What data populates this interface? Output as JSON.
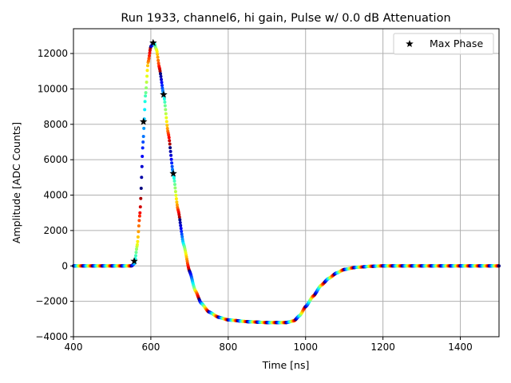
{
  "chart_data": {
    "type": "scatter",
    "title": "Run 1933, channel6, hi gain, Pulse w/ 0.0 dB Attenuation",
    "xlabel": "Time [ns]",
    "ylabel": "Amplitude [ADC Counts]",
    "xlim": [
      400,
      1500
    ],
    "ylim": [
      -4000,
      13400
    ],
    "xticks": [
      400,
      600,
      800,
      1000,
      1200,
      1400
    ],
    "yticks": [
      -4000,
      -2000,
      0,
      2000,
      4000,
      6000,
      8000,
      10000,
      12000
    ],
    "grid": true,
    "legend": {
      "position": "top-right",
      "entries": [
        "Max Phase"
      ]
    },
    "colormap": "jet (cycling, period ~25 ns)",
    "waveform": [
      [
        400,
        0
      ],
      [
        550,
        0
      ],
      [
        558,
        150
      ],
      [
        565,
        1200
      ],
      [
        572,
        3000
      ],
      [
        580,
        7000
      ],
      [
        586,
        9600
      ],
      [
        593,
        11500
      ],
      [
        600,
        12400
      ],
      [
        608,
        12600
      ],
      [
        615,
        12200
      ],
      [
        622,
        11200
      ],
      [
        633,
        9700
      ],
      [
        645,
        7500
      ],
      [
        658,
        5200
      ],
      [
        670,
        3200
      ],
      [
        685,
        1200
      ],
      [
        700,
        -300
      ],
      [
        715,
        -1400
      ],
      [
        730,
        -2100
      ],
      [
        750,
        -2600
      ],
      [
        775,
        -2900
      ],
      [
        800,
        -3050
      ],
      [
        850,
        -3150
      ],
      [
        900,
        -3200
      ],
      [
        950,
        -3200
      ],
      [
        970,
        -3100
      ],
      [
        985,
        -2800
      ],
      [
        1000,
        -2300
      ],
      [
        1020,
        -1700
      ],
      [
        1040,
        -1100
      ],
      [
        1060,
        -700
      ],
      [
        1080,
        -400
      ],
      [
        1100,
        -200
      ],
      [
        1130,
        -80
      ],
      [
        1170,
        -20
      ],
      [
        1200,
        0
      ],
      [
        1500,
        0
      ]
    ],
    "max_phase": {
      "name": "Max Phase",
      "x": [
        557,
        581,
        606,
        633,
        658
      ],
      "y": [
        270,
        8150,
        12600,
        9680,
        5220
      ]
    }
  }
}
